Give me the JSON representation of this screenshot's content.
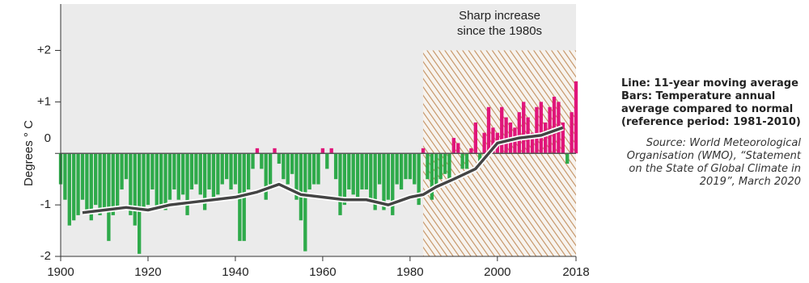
{
  "chart_data": {
    "type": "bar",
    "y_label": "Degrees ° C",
    "annotation": [
      "Sharp increase",
      "since the 1980s"
    ],
    "notes": {
      "line": "Line: 11-year moving average",
      "bars": "Bars: Temperature annual average compared to normal (reference period: 1981-2010)",
      "source": "Source: World Meteorological Organisation (WMO), “Statement on the State of Global Climate in 2019”, March 2020"
    },
    "x": [
      1900,
      1901,
      1902,
      1903,
      1904,
      1905,
      1906,
      1907,
      1908,
      1909,
      1910,
      1911,
      1912,
      1913,
      1914,
      1915,
      1916,
      1917,
      1918,
      1919,
      1920,
      1921,
      1922,
      1923,
      1924,
      1925,
      1926,
      1927,
      1928,
      1929,
      1930,
      1931,
      1932,
      1933,
      1934,
      1935,
      1936,
      1937,
      1938,
      1939,
      1940,
      1941,
      1942,
      1943,
      1944,
      1945,
      1946,
      1947,
      1948,
      1949,
      1950,
      1951,
      1952,
      1953,
      1954,
      1955,
      1956,
      1957,
      1958,
      1959,
      1960,
      1961,
      1962,
      1963,
      1964,
      1965,
      1966,
      1967,
      1968,
      1969,
      1970,
      1971,
      1972,
      1973,
      1974,
      1975,
      1976,
      1977,
      1978,
      1979,
      1980,
      1981,
      1982,
      1983,
      1984,
      1985,
      1986,
      1987,
      1988,
      1989,
      1990,
      1991,
      1992,
      1993,
      1994,
      1995,
      1996,
      1997,
      1998,
      1999,
      2000,
      2001,
      2002,
      2003,
      2004,
      2005,
      2006,
      2007,
      2008,
      2009,
      2010,
      2011,
      2012,
      2013,
      2014,
      2015,
      2016,
      2017,
      2018
    ],
    "values": [
      -0.6,
      -0.9,
      -1.4,
      -1.3,
      -1.2,
      -0.9,
      -1.1,
      -1.3,
      -1.0,
      -1.2,
      -1.15,
      -1.7,
      -1.2,
      -1.1,
      -0.7,
      -0.5,
      -1.2,
      -1.4,
      -1.95,
      -1.05,
      -1.0,
      -0.7,
      -1.1,
      -1.0,
      -1.1,
      -0.9,
      -0.7,
      -0.9,
      -0.8,
      -1.2,
      -0.7,
      -0.6,
      -0.8,
      -1.1,
      -0.7,
      -0.9,
      -0.8,
      -0.6,
      -0.5,
      -0.7,
      -0.6,
      -1.7,
      -1.7,
      -0.7,
      -0.3,
      0.1,
      -0.3,
      -0.9,
      -0.6,
      0.1,
      -0.2,
      -0.5,
      -0.6,
      -0.4,
      -0.9,
      -1.3,
      -1.9,
      -0.7,
      -0.6,
      -0.6,
      0.1,
      -0.3,
      0.1,
      -0.5,
      -1.2,
      -1.0,
      -0.7,
      -0.8,
      -0.9,
      -0.7,
      -0.7,
      -0.9,
      -1.1,
      -0.6,
      -1.1,
      -0.9,
      -1.2,
      -0.6,
      -0.7,
      -0.5,
      -0.5,
      -0.6,
      -1.0,
      0.1,
      -0.5,
      -0.9,
      -0.7,
      -0.5,
      -0.4,
      -0.5,
      0.3,
      0.2,
      -0.3,
      -0.3,
      0.1,
      0.6,
      -0.2,
      0.4,
      0.9,
      0.5,
      0.4,
      0.9,
      0.7,
      0.6,
      0.5,
      0.8,
      1.0,
      0.7,
      0.4,
      0.9,
      1.0,
      0.6,
      0.9,
      1.1,
      1.0,
      0.6,
      -0.2,
      0.8,
      1.4
    ],
    "positive_color": "#e0157a",
    "negative_color": "#2eaa4a",
    "line": {
      "color": "#444444",
      "x": [
        1905,
        1910,
        1915,
        1920,
        1925,
        1930,
        1935,
        1940,
        1945,
        1950,
        1955,
        1960,
        1965,
        1970,
        1975,
        1980,
        1983,
        1986,
        1990,
        1995,
        2000,
        2005,
        2010,
        2015
      ],
      "values": [
        -1.15,
        -1.1,
        -1.05,
        -1.1,
        -1.0,
        -0.95,
        -0.9,
        -0.85,
        -0.75,
        -0.6,
        -0.8,
        -0.85,
        -0.9,
        -0.9,
        -1.0,
        -0.85,
        -0.8,
        -0.65,
        -0.5,
        -0.3,
        0.2,
        0.3,
        0.35,
        0.5
      ]
    },
    "highlight": {
      "xlim": [
        1983,
        2018
      ],
      "top": 2
    },
    "xlim": [
      1900,
      2018
    ],
    "xticks": [
      1900,
      1920,
      1940,
      1960,
      1980,
      2000,
      2018
    ],
    "ylim": [
      -2,
      2.9
    ],
    "yticks": [
      {
        "value": 2,
        "label": "+2"
      },
      {
        "value": 1,
        "label": "+1"
      },
      0,
      -1,
      -2
    ]
  }
}
